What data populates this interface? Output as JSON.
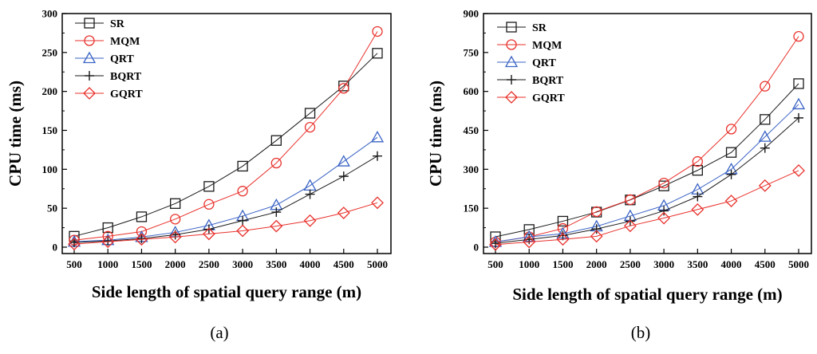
{
  "colors": {
    "SR": "#1a1a1a",
    "MQM": "#e8302b",
    "QRT": "#3a63c4",
    "BQRT": "#1a1a1a",
    "GQRT": "#e8302b"
  },
  "chart_data": [
    {
      "type": "line",
      "caption": "(a)",
      "xlabel": "Side length of spatial query range (m)",
      "ylabel": "CPU time (ms)",
      "categories": [
        "500",
        "1000",
        "1500",
        "2000",
        "2500",
        "3000",
        "3500",
        "4000",
        "4500",
        "5000"
      ],
      "ylim": [
        0,
        300
      ],
      "yticks": [
        "0",
        "50",
        "100",
        "150",
        "200",
        "250",
        "300"
      ],
      "legend_position": "top-left",
      "series": [
        {
          "name": "SR",
          "marker": "square",
          "color": "#1a1a1a",
          "values": [
            14,
            25,
            39,
            56,
            78,
            104,
            137,
            172,
            207,
            249
          ]
        },
        {
          "name": "MQM",
          "marker": "circle",
          "color": "#e8302b",
          "values": [
            9,
            14,
            20,
            36,
            55,
            72,
            108,
            154,
            204,
            277
          ]
        },
        {
          "name": "QRT",
          "marker": "triangle",
          "color": "#3a63c4",
          "values": [
            7,
            9,
            13,
            19,
            28,
            40,
            54,
            79,
            110,
            141
          ]
        },
        {
          "name": "BQRT",
          "marker": "plus",
          "color": "#1a1a1a",
          "values": [
            6,
            8,
            11,
            16,
            23,
            34,
            45,
            68,
            91,
            117
          ]
        },
        {
          "name": "GQRT",
          "marker": "diamond",
          "color": "#e8302b",
          "values": [
            4,
            7,
            10,
            13,
            17,
            21,
            27,
            34,
            44,
            57
          ]
        }
      ]
    },
    {
      "type": "line",
      "caption": "(b)",
      "xlabel": "Side length of spatial query range (m)",
      "ylabel": "CPU time (ms)",
      "categories": [
        "500",
        "1000",
        "1500",
        "2000",
        "2500",
        "3000",
        "3500",
        "4000",
        "4500",
        "5000"
      ],
      "ylim": [
        0,
        900
      ],
      "yticks": [
        "0",
        "150",
        "300",
        "450",
        "600",
        "750",
        "900"
      ],
      "legend_position": "top-left",
      "series": [
        {
          "name": "SR",
          "marker": "square",
          "color": "#1a1a1a",
          "values": [
            40,
            68,
            100,
            135,
            182,
            236,
            296,
            365,
            492,
            630
          ]
        },
        {
          "name": "MQM",
          "marker": "circle",
          "color": "#e8302b",
          "values": [
            20,
            40,
            72,
            137,
            183,
            247,
            330,
            455,
            620,
            812
          ]
        },
        {
          "name": "QRT",
          "marker": "triangle",
          "color": "#3a63c4",
          "values": [
            20,
            40,
            52,
            80,
            120,
            160,
            222,
            300,
            425,
            550
          ]
        },
        {
          "name": "BQRT",
          "marker": "plus",
          "color": "#1a1a1a",
          "values": [
            15,
            30,
            45,
            70,
            100,
            140,
            195,
            280,
            382,
            498
          ]
        },
        {
          "name": "GQRT",
          "marker": "diamond",
          "color": "#e8302b",
          "values": [
            10,
            20,
            30,
            42,
            82,
            112,
            145,
            178,
            237,
            295
          ]
        }
      ]
    }
  ]
}
